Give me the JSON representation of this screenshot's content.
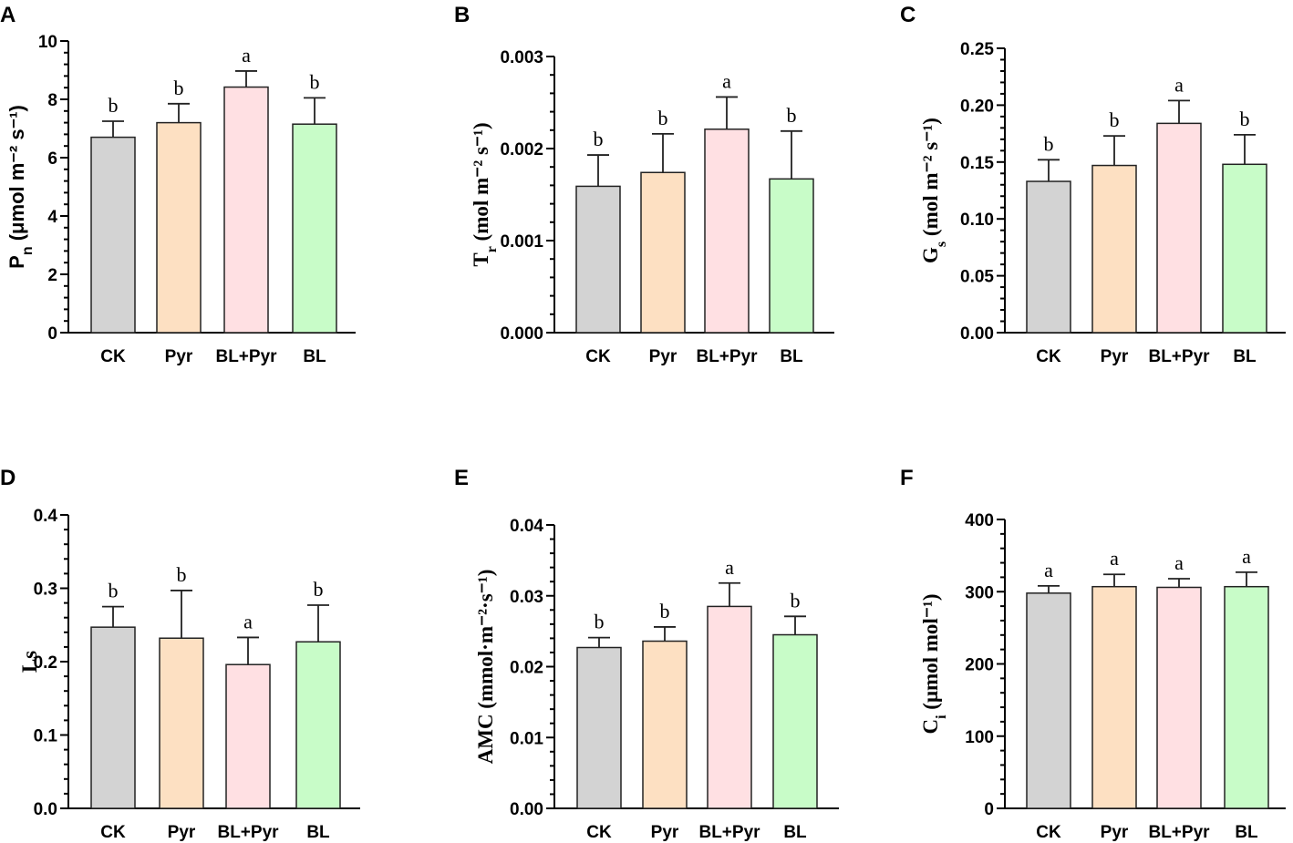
{
  "figure": {
    "background": "#ffffff"
  },
  "colors": [
    "#d3d3d3",
    "#fde0c2",
    "#ffe0e3",
    "#c8fcc8"
  ],
  "chart_data": [
    {
      "panel": "A",
      "type": "bar",
      "ylabel_main": "P",
      "ylabel_sub": "n",
      "ylabel_unit": " (μmol m⁻² s⁻¹)",
      "categories": [
        "CK",
        "Pyr",
        "BL+Pyr",
        "BL"
      ],
      "values": [
        6.7,
        7.2,
        8.42,
        7.15
      ],
      "errors": [
        0.55,
        0.65,
        0.55,
        0.9
      ],
      "labels": [
        "b",
        "b",
        "a",
        "b"
      ],
      "ylim": [
        0,
        10
      ],
      "ticks": [
        0,
        2,
        4,
        6,
        8,
        10
      ],
      "tick_labels": [
        "0",
        "2",
        "4",
        "6",
        "8",
        "10"
      ]
    },
    {
      "panel": "B",
      "type": "bar",
      "ylabel_main": "T",
      "ylabel_sub": "r",
      "ylabel_unit": " (mol m⁻² s⁻¹)",
      "categories": [
        "CK",
        "Pyr",
        "BL+Pyr",
        "BL"
      ],
      "values": [
        0.00159,
        0.00174,
        0.00221,
        0.00167
      ],
      "errors": [
        0.00034,
        0.00042,
        0.00035,
        0.00052
      ],
      "labels": [
        "b",
        "b",
        "a",
        "b"
      ],
      "ylim": [
        0,
        0.003
      ],
      "ticks": [
        0,
        0.001,
        0.002,
        0.003
      ],
      "tick_labels": [
        "0.000",
        "0.001",
        "0.002",
        "0.003"
      ]
    },
    {
      "panel": "C",
      "type": "bar",
      "ylabel_main": "G",
      "ylabel_sub": "s",
      "ylabel_unit": " (mol m⁻² s⁻¹)",
      "categories": [
        "CK",
        "Pyr",
        "BL+Pyr",
        "BL"
      ],
      "values": [
        0.133,
        0.147,
        0.184,
        0.148
      ],
      "errors": [
        0.019,
        0.026,
        0.02,
        0.026
      ],
      "labels": [
        "b",
        "b",
        "a",
        "b"
      ],
      "ylim": [
        0,
        0.25
      ],
      "ticks": [
        0,
        0.05,
        0.1,
        0.15,
        0.2,
        0.25
      ],
      "tick_labels": [
        "0.00",
        "0.05",
        "0.10",
        "0.15",
        "0.20",
        "0.25"
      ]
    },
    {
      "panel": "D",
      "type": "bar",
      "ylabel_main": "Ls",
      "ylabel_sub": "",
      "ylabel_unit": "",
      "categories": [
        "CK",
        "Pyr",
        "BL+Pyr",
        "BL"
      ],
      "values": [
        0.247,
        0.232,
        0.196,
        0.227
      ],
      "errors": [
        0.028,
        0.065,
        0.037,
        0.05
      ],
      "labels": [
        "b",
        "b",
        "a",
        "b"
      ],
      "ylim": [
        0,
        0.4
      ],
      "ticks": [
        0,
        0.1,
        0.2,
        0.3,
        0.4
      ],
      "tick_labels": [
        "0.0",
        "0.1",
        "0.2",
        "0.3",
        "0.4"
      ]
    },
    {
      "panel": "E",
      "type": "bar",
      "ylabel_main": "AMC (mmol·m⁻²·s⁻¹)",
      "ylabel_sub": "",
      "ylabel_unit": "",
      "categories": [
        "CK",
        "Pyr",
        "BL+Pyr",
        "BL"
      ],
      "values": [
        0.0227,
        0.0236,
        0.0285,
        0.0245
      ],
      "errors": [
        0.0014,
        0.002,
        0.0033,
        0.0026
      ],
      "labels": [
        "b",
        "b",
        "a",
        "b"
      ],
      "ylim": [
        0,
        0.04
      ],
      "ticks": [
        0,
        0.01,
        0.02,
        0.03,
        0.04
      ],
      "tick_labels": [
        "0.00",
        "0.01",
        "0.02",
        "0.03",
        "0.04"
      ]
    },
    {
      "panel": "F",
      "type": "bar",
      "ylabel_main": "C",
      "ylabel_sub": "i",
      "ylabel_unit": " (μmol mol⁻¹)",
      "categories": [
        "CK",
        "Pyr",
        "BL+Pyr",
        "BL"
      ],
      "values": [
        298,
        307,
        306,
        307
      ],
      "errors": [
        10,
        17,
        12,
        20
      ],
      "labels": [
        "a",
        "a",
        "a",
        "a"
      ],
      "ylim": [
        0,
        400
      ],
      "ticks": [
        0,
        100,
        200,
        300,
        400
      ],
      "tick_labels": [
        "0",
        "100",
        "200",
        "300",
        "400"
      ]
    }
  ]
}
